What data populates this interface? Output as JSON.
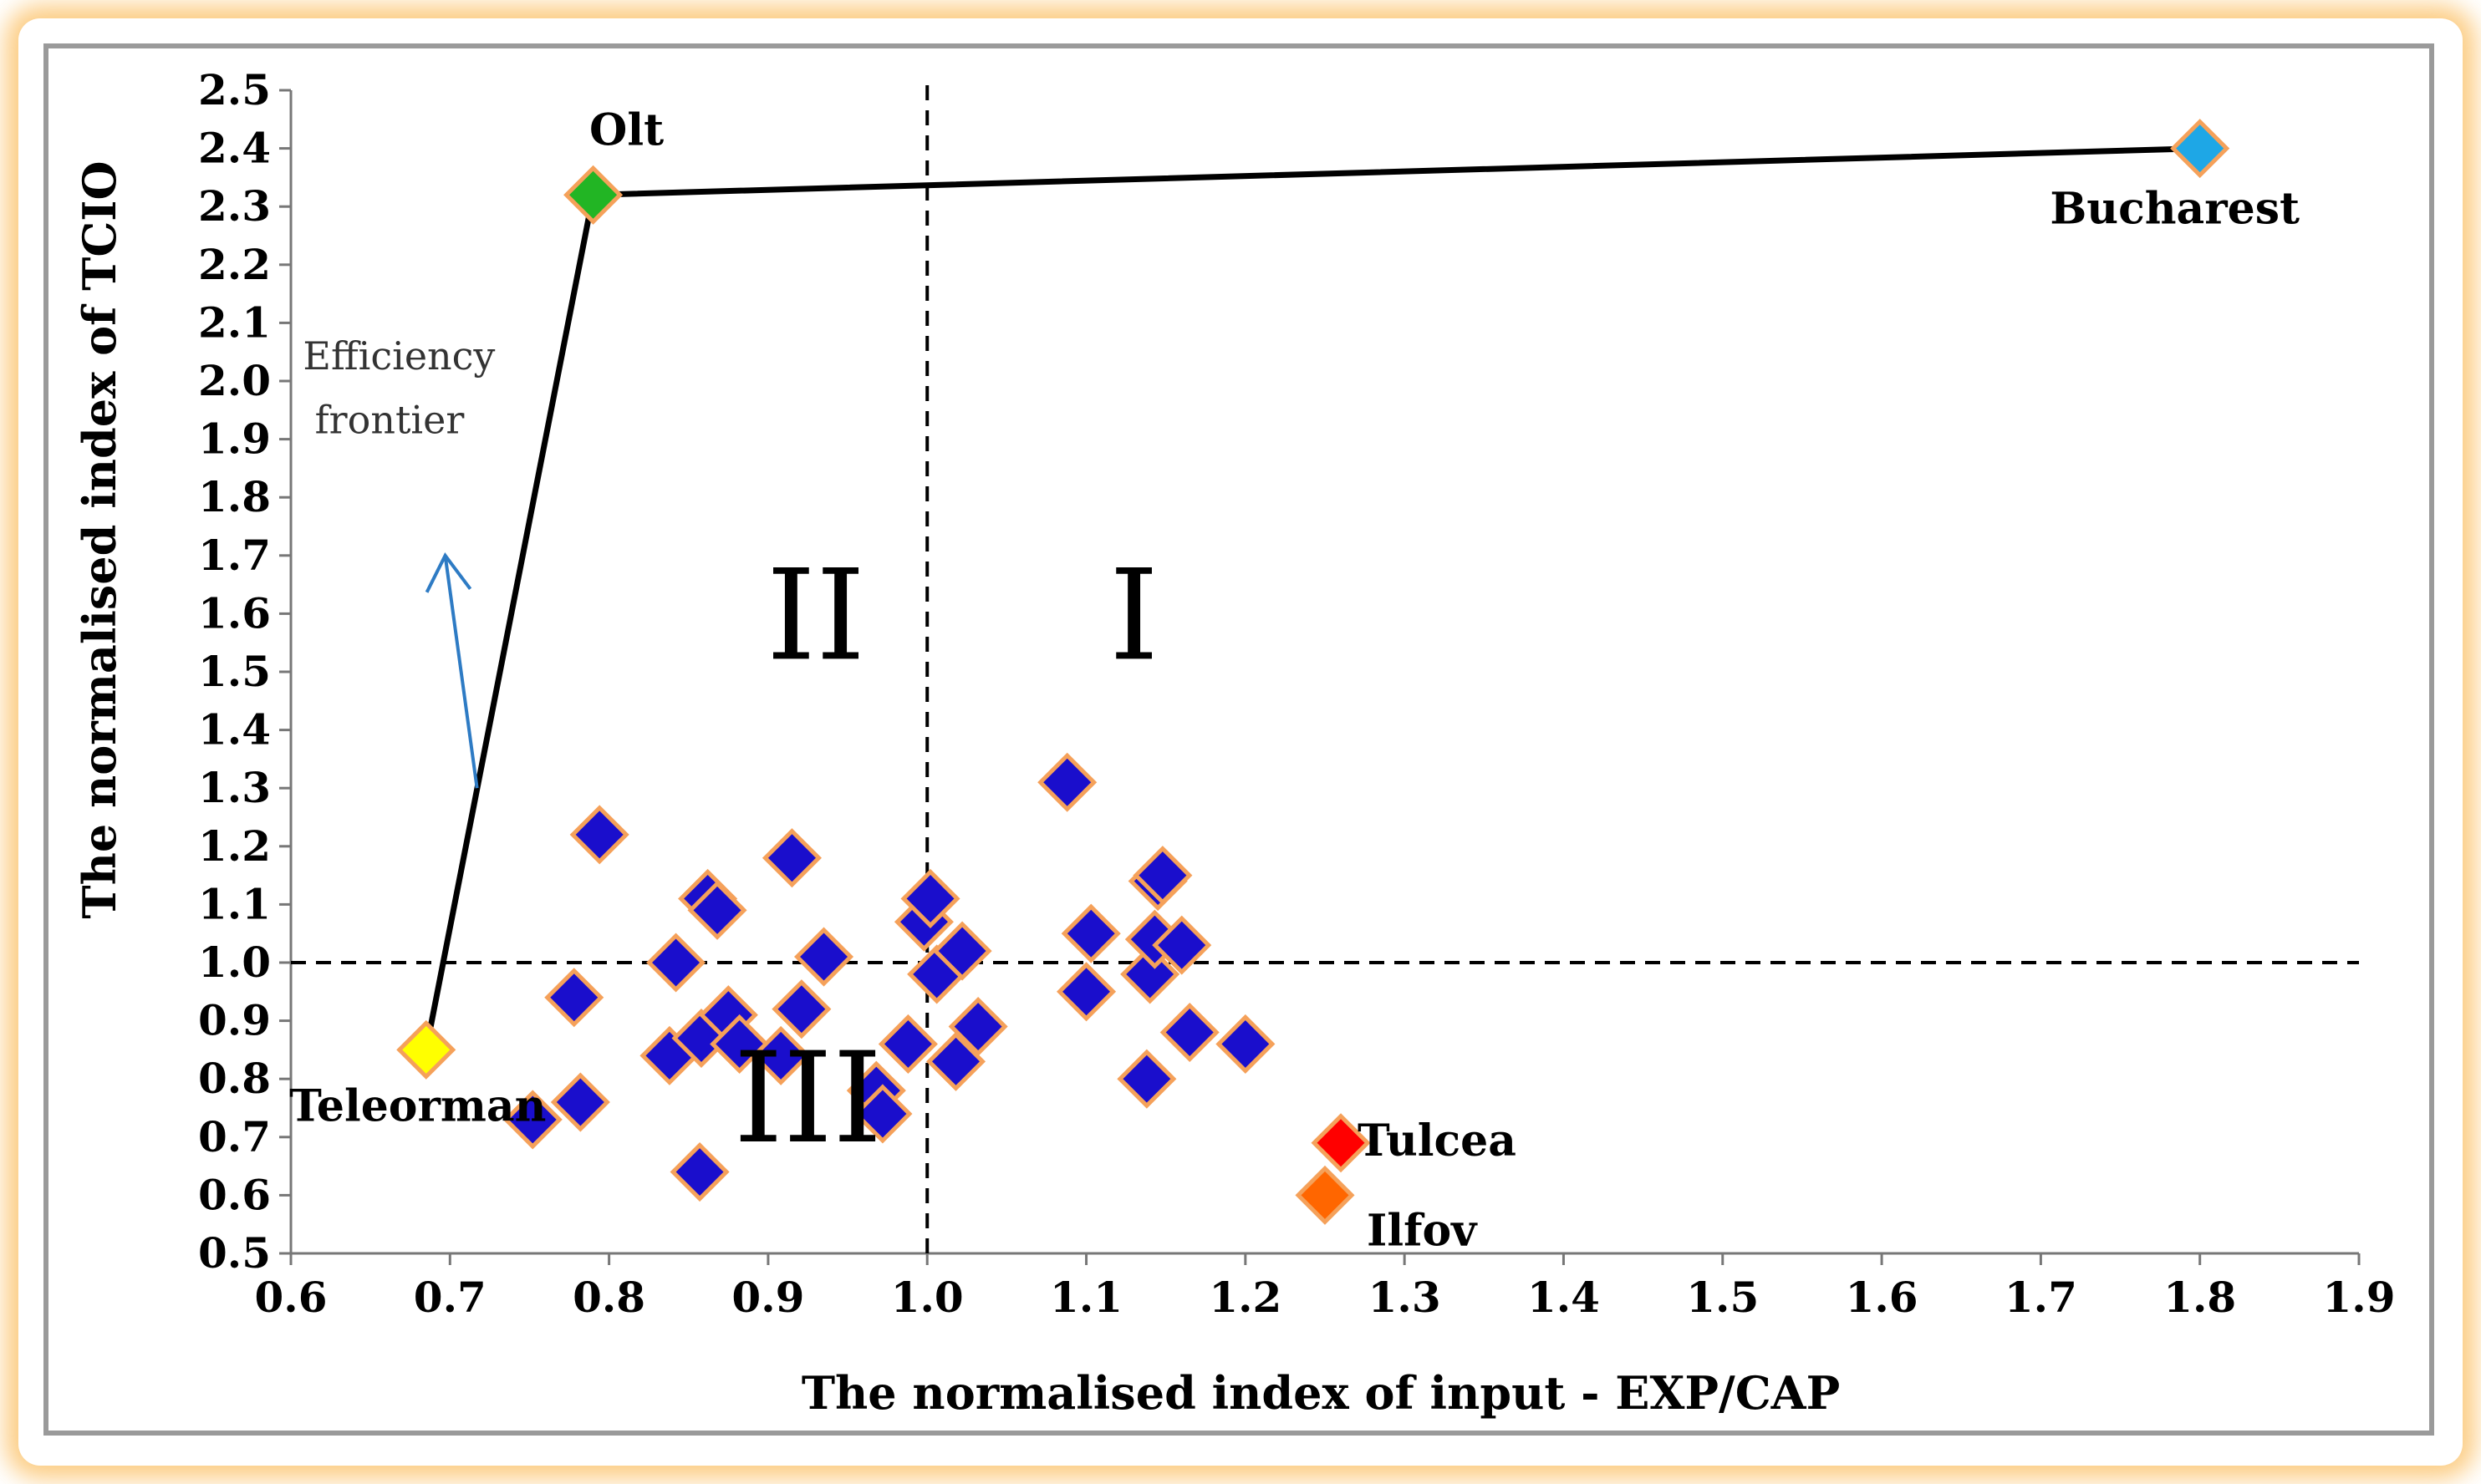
{
  "chart_data": {
    "type": "scatter",
    "xlabel": "The normalised index of input - EXP/CAP",
    "ylabel": "The normalised index of TCIO",
    "xlim": [
      0.6,
      1.9
    ],
    "ylim": [
      0.5,
      2.5
    ],
    "x_ticks": [
      "0.6",
      "0.7",
      "0.8",
      "0.9",
      "1.0",
      "1.1",
      "1.2",
      "1.3",
      "1.4",
      "1.5",
      "1.6",
      "1.7",
      "1.8",
      "1.9"
    ],
    "y_ticks": [
      "0.5",
      "0.6",
      "0.7",
      "0.8",
      "0.9",
      "1.0",
      "1.1",
      "1.2",
      "1.3",
      "1.4",
      "1.5",
      "1.6",
      "1.7",
      "1.8",
      "1.9",
      "2.0",
      "2.1",
      "2.2",
      "2.3",
      "2.4",
      "2.5"
    ],
    "grid": false,
    "reference_lines": {
      "x": 1.0,
      "y": 1.0,
      "style": "dashed"
    },
    "frontier": {
      "label": "Efficiency frontier",
      "points": [
        [
          0.685,
          0.85
        ],
        [
          0.79,
          2.32
        ],
        [
          1.8,
          2.4
        ]
      ]
    },
    "quadrant_labels": [
      {
        "text": "I",
        "x": 1.13,
        "y": 1.58
      },
      {
        "text": "II",
        "x": 0.93,
        "y": 1.58
      },
      {
        "text": "III",
        "x": 0.925,
        "y": 0.75
      }
    ],
    "named_points": [
      {
        "name": "Olt",
        "x": 0.79,
        "y": 2.32,
        "color": "#22b524"
      },
      {
        "name": "Bucharest",
        "x": 1.8,
        "y": 2.4,
        "color": "#1ea7e6"
      },
      {
        "name": "Teleorman",
        "x": 0.685,
        "y": 0.85,
        "color": "#ffff00"
      },
      {
        "name": "Tulcea",
        "x": 1.26,
        "y": 0.69,
        "color": "#ff0000"
      },
      {
        "name": "Ilfov",
        "x": 1.25,
        "y": 0.6,
        "color": "#ff6600"
      }
    ],
    "other_points": {
      "color": "#1a0ecc",
      "edge_color": "#f5a15a",
      "points": [
        [
          0.752,
          0.73
        ],
        [
          0.778,
          0.94
        ],
        [
          0.782,
          0.76
        ],
        [
          0.794,
          1.22
        ],
        [
          0.838,
          0.84
        ],
        [
          0.842,
          1.0
        ],
        [
          0.857,
          0.64
        ],
        [
          0.858,
          0.87
        ],
        [
          0.862,
          1.11
        ],
        [
          0.868,
          1.09
        ],
        [
          0.875,
          0.91
        ],
        [
          0.882,
          0.86
        ],
        [
          0.908,
          0.84
        ],
        [
          0.915,
          1.18
        ],
        [
          0.921,
          0.92
        ],
        [
          0.935,
          1.01
        ],
        [
          0.968,
          0.78
        ],
        [
          0.972,
          0.74
        ],
        [
          0.988,
          0.86
        ],
        [
          0.998,
          1.07
        ],
        [
          1.002,
          1.11
        ],
        [
          1.006,
          0.98
        ],
        [
          1.018,
          0.83
        ],
        [
          1.022,
          1.02
        ],
        [
          1.032,
          0.89
        ],
        [
          1.088,
          1.31
        ],
        [
          1.1,
          0.95
        ],
        [
          1.103,
          1.05
        ],
        [
          1.138,
          0.8
        ],
        [
          1.14,
          0.98
        ],
        [
          1.143,
          1.04
        ],
        [
          1.145,
          1.14
        ],
        [
          1.148,
          1.15
        ],
        [
          1.16,
          1.03
        ],
        [
          1.165,
          0.88
        ],
        [
          1.2,
          0.86
        ]
      ]
    }
  }
}
